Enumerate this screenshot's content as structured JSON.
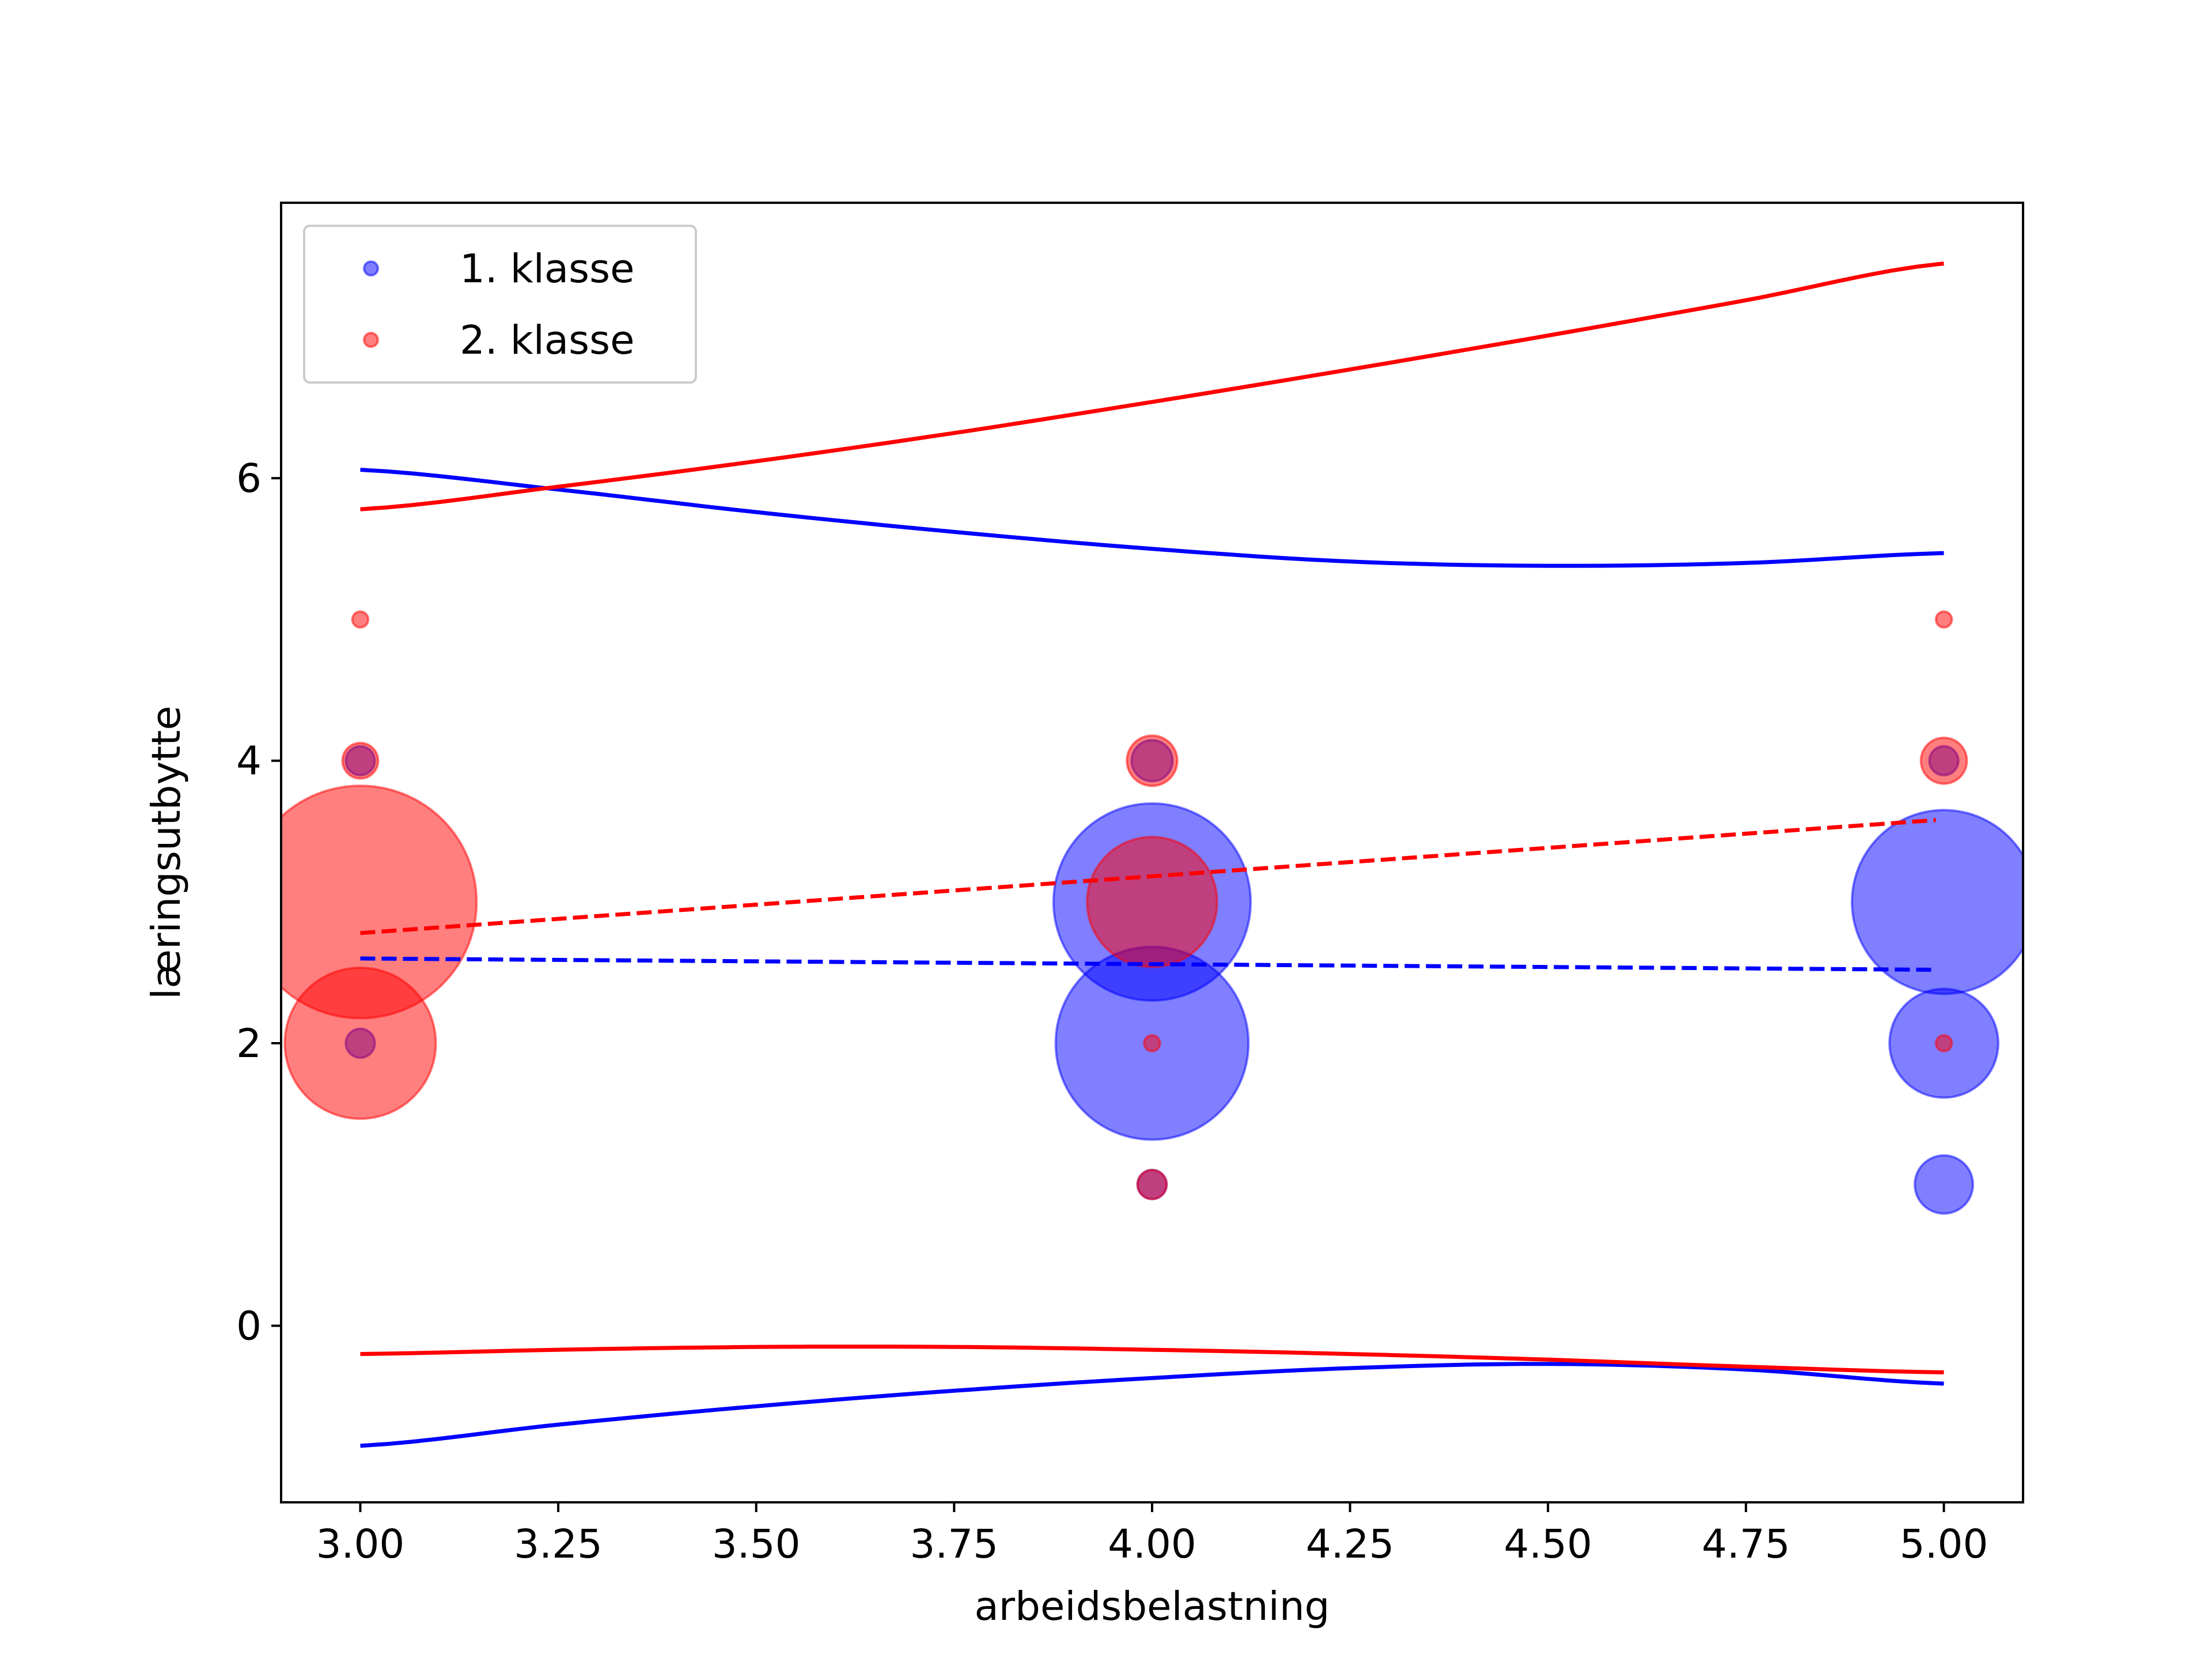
{
  "chart_data": {
    "type": "scatter",
    "xlabel": "arbeidsbelastning",
    "ylabel": "læringsutbytte",
    "xlim": [
      2.9,
      5.1
    ],
    "ylim": [
      -1.25,
      7.95
    ],
    "x_ticks": [
      3.0,
      3.25,
      3.5,
      3.75,
      4.0,
      4.25,
      4.5,
      4.75,
      5.0
    ],
    "x_tick_labels": [
      "3.00",
      "3.25",
      "3.50",
      "3.75",
      "4.00",
      "4.25",
      "4.50",
      "4.75",
      "5.00"
    ],
    "y_ticks": [
      0,
      2,
      4,
      6
    ],
    "y_tick_labels": [
      "0",
      "2",
      "4",
      "6"
    ],
    "grid": false,
    "legend_placement": "top-left",
    "series": [
      {
        "name": "1. klasse",
        "color": "#0000ff",
        "points": [
          {
            "x": 3,
            "y": 2,
            "size": 1
          },
          {
            "x": 3,
            "y": 4,
            "size": 1
          },
          {
            "x": 4,
            "y": 1,
            "size": 1
          },
          {
            "x": 4,
            "y": 2,
            "size": 44
          },
          {
            "x": 4,
            "y": 3,
            "size": 46
          },
          {
            "x": 4,
            "y": 4,
            "size": 2
          },
          {
            "x": 5,
            "y": 1,
            "size": 4
          },
          {
            "x": 5,
            "y": 2,
            "size": 14
          },
          {
            "x": 5,
            "y": 3,
            "size": 40
          },
          {
            "x": 5,
            "y": 4,
            "size": 1
          }
        ],
        "trend": {
          "x": [
            3.0,
            5.0
          ],
          "y": [
            2.6,
            2.52
          ]
        },
        "band_upper": {
          "x": [
            3.0,
            3.25,
            3.5,
            3.75,
            4.0,
            4.25,
            4.5,
            4.75,
            5.0
          ],
          "y": [
            6.06,
            5.92,
            5.76,
            5.62,
            5.5,
            5.41,
            5.38,
            5.4,
            5.47
          ]
        },
        "band_lower": {
          "x": [
            3.0,
            3.25,
            3.5,
            3.75,
            4.0,
            4.25,
            4.5,
            4.75,
            5.0
          ],
          "y": [
            -0.85,
            -0.7,
            -0.57,
            -0.46,
            -0.37,
            -0.3,
            -0.27,
            -0.31,
            -0.41
          ]
        }
      },
      {
        "name": "2. klasse",
        "color": "#ff0000",
        "points": [
          {
            "x": 3,
            "y": 2,
            "size": 27
          },
          {
            "x": 3,
            "y": 3,
            "size": 64
          },
          {
            "x": 3,
            "y": 4,
            "size": 1.5
          },
          {
            "x": 3,
            "y": 5,
            "size": 0.3
          },
          {
            "x": 4,
            "y": 1,
            "size": 1
          },
          {
            "x": 4,
            "y": 2,
            "size": 0.3
          },
          {
            "x": 4,
            "y": 3,
            "size": 20
          },
          {
            "x": 4,
            "y": 4,
            "size": 3
          },
          {
            "x": 5,
            "y": 2,
            "size": 0.3
          },
          {
            "x": 5,
            "y": 4,
            "size": 2.5
          },
          {
            "x": 5,
            "y": 5,
            "size": 0.3
          }
        ],
        "trend": {
          "x": [
            3.0,
            5.0
          ],
          "y": [
            2.78,
            3.58
          ]
        },
        "band_upper": {
          "x": [
            3.0,
            3.25,
            3.5,
            3.75,
            4.0,
            4.25,
            4.5,
            4.75,
            5.0
          ],
          "y": [
            5.78,
            5.94,
            6.12,
            6.32,
            6.54,
            6.77,
            7.01,
            7.26,
            7.52
          ]
        },
        "band_lower": {
          "x": [
            3.0,
            3.25,
            3.5,
            3.75,
            4.0,
            4.25,
            4.5,
            4.75,
            5.0
          ],
          "y": [
            -0.2,
            -0.17,
            -0.15,
            -0.15,
            -0.17,
            -0.2,
            -0.24,
            -0.29,
            -0.33
          ]
        }
      }
    ]
  }
}
